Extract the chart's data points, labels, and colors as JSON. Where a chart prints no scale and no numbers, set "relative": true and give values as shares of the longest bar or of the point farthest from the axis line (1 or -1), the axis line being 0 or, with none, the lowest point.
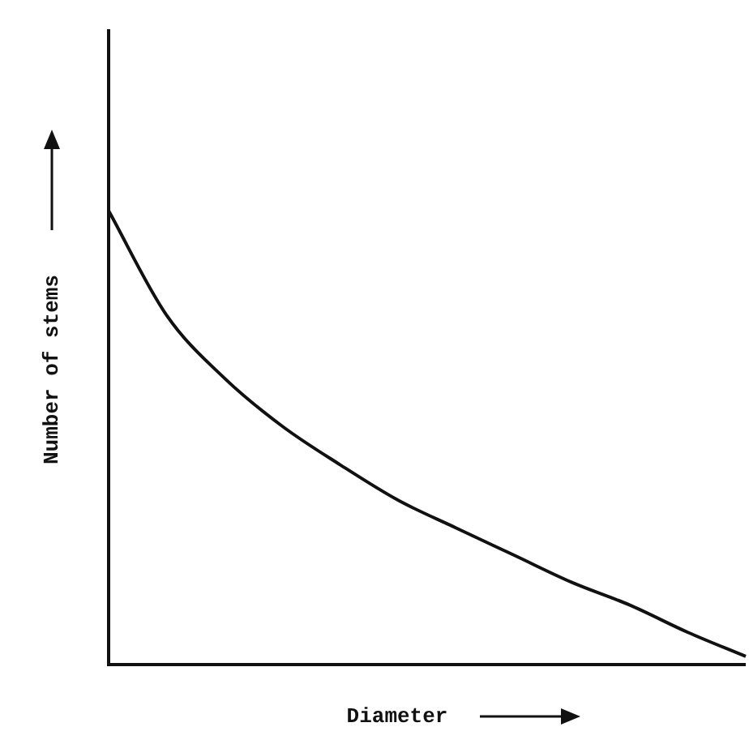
{
  "chart_data": {
    "type": "line",
    "relative": true,
    "xlabel": "Diameter",
    "ylabel": "Number of stems",
    "categories": [
      null,
      null,
      null,
      null,
      null,
      null,
      null,
      null,
      null,
      null,
      null,
      null
    ],
    "series": [
      {
        "color": "#111111",
        "values": [
          1,
          0.77,
          0.631,
          0.525,
          0.44,
          0.362,
          0.301,
          0.241,
          0.181,
          0.131,
          0.071,
          0.018
        ]
      }
    ],
    "legend": false,
    "marker": "none",
    "line_style": "solid"
  }
}
